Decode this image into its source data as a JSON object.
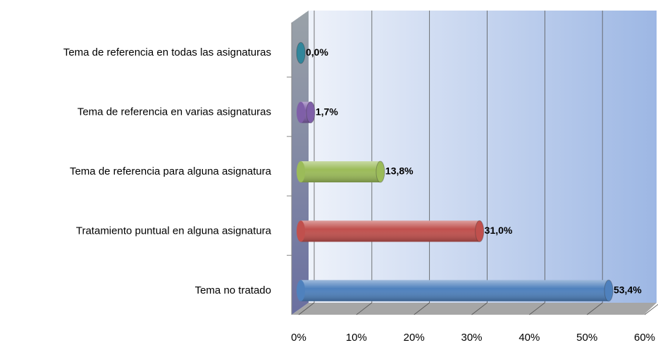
{
  "chart_data": {
    "type": "bar",
    "orientation": "horizontal",
    "categories": [
      "Tema de referencia en todas las asignaturas",
      "Tema de referencia en varias asignaturas",
      "Tema de referencia para alguna asignatura",
      "Tratamiento puntual en alguna asignatura",
      "Tema no tratado"
    ],
    "values": [
      0.0,
      1.7,
      13.8,
      31.0,
      53.4
    ],
    "value_labels": [
      "0,0%",
      "1,7%",
      "13,8%",
      "31,0%",
      "53,4%"
    ],
    "colors": [
      "#31869b",
      "#7f5fa8",
      "#9bbb59",
      "#c0504d",
      "#4f81bd"
    ],
    "xlim": [
      0,
      60
    ],
    "xticks": [
      {
        "value": 0,
        "label": "0%"
      },
      {
        "value": 10,
        "label": "10%"
      },
      {
        "value": 20,
        "label": "20%"
      },
      {
        "value": 30,
        "label": "30%"
      },
      {
        "value": 40,
        "label": "40%"
      },
      {
        "value": 50,
        "label": "50%"
      },
      {
        "value": 60,
        "label": "60%"
      }
    ],
    "grid": true
  }
}
